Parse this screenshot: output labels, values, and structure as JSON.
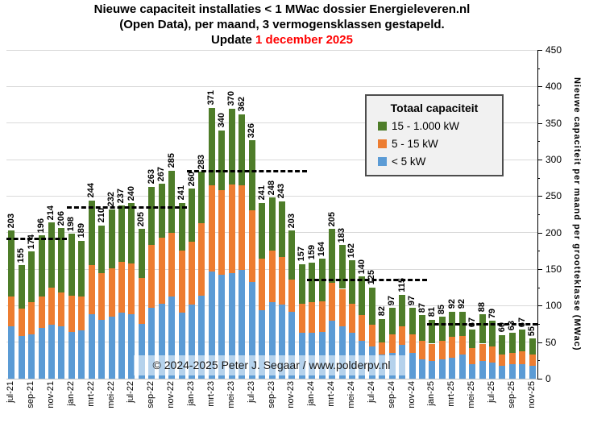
{
  "title": {
    "line1": "Nieuwe capaciteit installaties < 1 MWac dossier Energieleveren.nl",
    "line2": "(Open Data), per maand, 3 vermogensklassen gestapeld.",
    "update_label": "Update ",
    "update_date": "1 december 2025",
    "update_date_color": "#ff0000"
  },
  "y_axis": {
    "title": "Nieuwe capaciteit per maand per grootteklasse (MWac)",
    "min": 0,
    "max": 450,
    "major_step": 50,
    "minor_step": 25
  },
  "legend": {
    "title": "Totaal capaciteit",
    "items": [
      {
        "label": "15 - 1.000 kW",
        "color": "#4e7d29"
      },
      {
        "label": "5 - 15 kW",
        "color": "#ed7d31"
      },
      {
        "label": "< 5 kW",
        "color": "#5b9bd5"
      }
    ]
  },
  "copyright": "© 2024-2025  Peter J. Segaar / www.polderpv.nl",
  "chart_data": {
    "type": "bar",
    "stacked": true,
    "grid": true,
    "ylim": [
      0,
      450
    ],
    "x_tick_every": 2,
    "legend_position": "upper-right-inside",
    "categories": [
      "jul-21",
      "aug-21",
      "sep-21",
      "okt-21",
      "nov-21",
      "dec-21",
      "jan-22",
      "feb-22",
      "mrt-22",
      "apr-22",
      "mei-22",
      "jun-22",
      "jul-22",
      "aug-22",
      "sep-22",
      "okt-22",
      "nov-22",
      "dec-22",
      "jan-23",
      "feb-23",
      "mrt-23",
      "apr-23",
      "mei-23",
      "jun-23",
      "jul-23",
      "aug-23",
      "sep-23",
      "okt-23",
      "nov-23",
      "dec-23",
      "jan-24",
      "feb-24",
      "mrt-24",
      "apr-24",
      "mei-24",
      "jun-24",
      "jul-24",
      "aug-24",
      "sep-24",
      "okt-24",
      "nov-24",
      "dec-24",
      "jan-25",
      "feb-25",
      "mrt-25",
      "apr-25",
      "mei-25",
      "jun-25",
      "jul-25",
      "aug-25",
      "sep-25",
      "okt-25",
      "nov-25"
    ],
    "series": [
      {
        "name": "< 5 kW",
        "color": "#5b9bd5",
        "values": [
          72,
          58,
          61,
          70,
          74,
          72,
          64,
          66,
          88,
          81,
          85,
          90,
          88,
          75,
          97,
          103,
          112,
          90,
          101,
          114,
          147,
          142,
          145,
          149,
          132,
          94,
          105,
          101,
          92,
          63,
          63,
          64,
          79,
          72,
          63,
          52,
          44,
          33,
          35,
          46,
          35,
          26,
          24,
          26,
          29,
          33,
          20,
          24,
          22,
          18,
          20,
          20,
          18
        ]
      },
      {
        "name": "5 - 15 kW",
        "color": "#ed7d31",
        "values": [
          40,
          38,
          44,
          43,
          51,
          46,
          50,
          46,
          68,
          64,
          66,
          70,
          70,
          63,
          86,
          90,
          88,
          85,
          86,
          99,
          118,
          116,
          121,
          116,
          99,
          70,
          70,
          66,
          44,
          40,
          42,
          42,
          52,
          51,
          40,
          35,
          30,
          17,
          26,
          26,
          26,
          26,
          24,
          26,
          28,
          26,
          22,
          24,
          22,
          15,
          15,
          17,
          15
        ]
      },
      {
        "name": "15 - 1.000 kW",
        "color": "#4e7d29",
        "values": [
          91,
          59,
          69,
          83,
          89,
          88,
          84,
          77,
          88,
          65,
          81,
          77,
          82,
          67,
          80,
          74,
          85,
          66,
          73,
          70,
          106,
          82,
          104,
          97,
          95,
          77,
          73,
          76,
          67,
          54,
          54,
          58,
          74,
          60,
          59,
          53,
          51,
          32,
          36,
          43,
          36,
          35,
          33,
          33,
          35,
          33,
          25,
          40,
          35,
          27,
          28,
          30,
          22
        ]
      }
    ],
    "totals": [
      203,
      155,
      174,
      196,
      214,
      206,
      198,
      189,
      244,
      210,
      232,
      237,
      240,
      205,
      263,
      267,
      285,
      241,
      260,
      283,
      371,
      340,
      370,
      362,
      326,
      241,
      248,
      243,
      203,
      157,
      159,
      164,
      205,
      183,
      162,
      140,
      125,
      82,
      97,
      115,
      97,
      87,
      81,
      85,
      92,
      92,
      67,
      88,
      79,
      60,
      63,
      67,
      55
    ],
    "year_averages": [
      {
        "year": "2021",
        "value": 191,
        "from_index": 0,
        "to_index": 5
      },
      {
        "year": "2022",
        "value": 234,
        "from_index": 6,
        "to_index": 17
      },
      {
        "year": "2023",
        "value": 284,
        "from_index": 18,
        "to_index": 29
      },
      {
        "year": "2024",
        "value": 135,
        "from_index": 30,
        "to_index": 41
      },
      {
        "year": "2025",
        "value": 75,
        "from_index": 42,
        "to_index": 52
      }
    ]
  }
}
